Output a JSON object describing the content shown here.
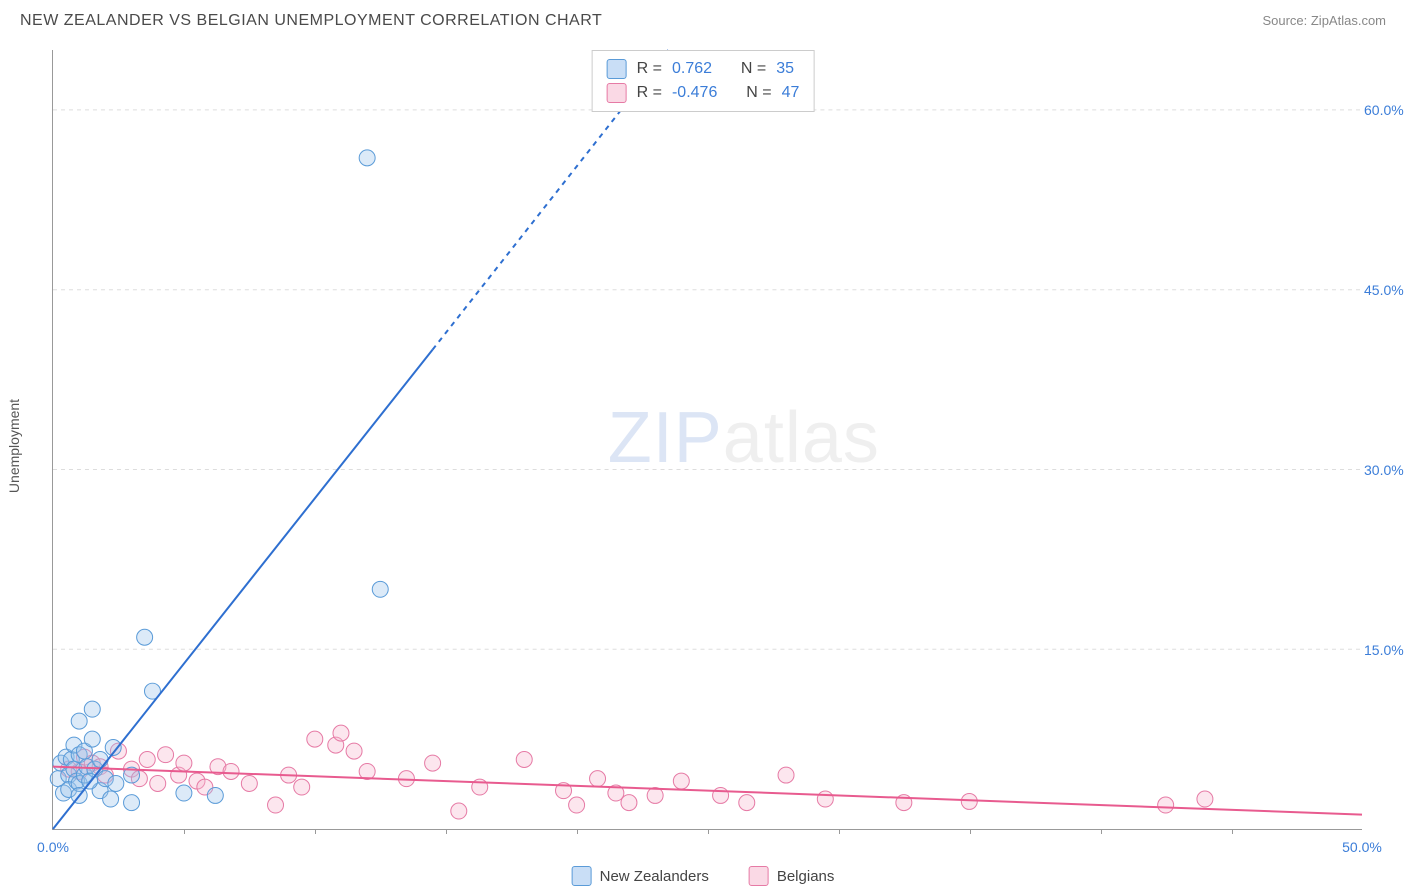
{
  "title": "NEW ZEALANDER VS BELGIAN UNEMPLOYMENT CORRELATION CHART",
  "source": "Source: ZipAtlas.com",
  "ylabel": "Unemployment",
  "watermark_zip": "ZIP",
  "watermark_atlas": "atlas",
  "chart": {
    "type": "scatter",
    "background_color": "#ffffff",
    "grid_color": "#dddddd",
    "axis_color": "#999999",
    "tick_color": "#3b7dd8",
    "xlim": [
      0,
      50
    ],
    "ylim": [
      0,
      65
    ],
    "yticks": [
      15.0,
      30.0,
      45.0,
      60.0
    ],
    "ytick_labels": [
      "15.0%",
      "30.0%",
      "45.0%",
      "60.0%"
    ],
    "xtick_marks": [
      5,
      10,
      15,
      20,
      25,
      30,
      35,
      40,
      45
    ],
    "xaxis_end_labels": {
      "min": "0.0%",
      "max": "50.0%"
    },
    "marker_radius": 8,
    "marker_opacity": 0.35,
    "trendline_width": 2
  },
  "series": {
    "new_zealanders": {
      "label": "New Zealanders",
      "color_fill": "#9cc3ec",
      "color_stroke": "#5a9bd8",
      "trend_color": "#2e6fd0",
      "R": "0.762",
      "N": "35",
      "trendline": {
        "x1": 0,
        "y1": 0,
        "x2": 14.5,
        "y2": 40
      },
      "trendline_extend": {
        "x1": 14.5,
        "y1": 40,
        "x2": 23.5,
        "y2": 65
      },
      "points": [
        [
          0.2,
          4.2
        ],
        [
          0.3,
          5.5
        ],
        [
          0.4,
          3.0
        ],
        [
          0.5,
          6.0
        ],
        [
          0.6,
          4.5
        ],
        [
          0.6,
          3.3
        ],
        [
          0.7,
          5.8
        ],
        [
          0.8,
          7.0
        ],
        [
          0.8,
          5.0
        ],
        [
          0.9,
          4.0
        ],
        [
          1.0,
          9.0
        ],
        [
          1.0,
          6.2
        ],
        [
          1.0,
          3.8
        ],
        [
          1.0,
          2.8
        ],
        [
          1.2,
          6.5
        ],
        [
          1.2,
          4.5
        ],
        [
          1.3,
          5.2
        ],
        [
          1.5,
          7.5
        ],
        [
          1.5,
          10.0
        ],
        [
          1.6,
          5.0
        ],
        [
          1.8,
          3.2
        ],
        [
          1.8,
          5.8
        ],
        [
          2.0,
          4.2
        ],
        [
          2.2,
          2.5
        ],
        [
          2.3,
          6.8
        ],
        [
          2.4,
          3.8
        ],
        [
          3.0,
          4.5
        ],
        [
          3.0,
          2.2
        ],
        [
          3.5,
          16.0
        ],
        [
          3.8,
          11.5
        ],
        [
          5.0,
          3.0
        ],
        [
          6.2,
          2.8
        ],
        [
          12.0,
          56.0
        ],
        [
          12.5,
          20.0
        ],
        [
          1.4,
          4.0
        ]
      ]
    },
    "belgians": {
      "label": "Belgians",
      "color_fill": "#f5b8ce",
      "color_stroke": "#e67aa5",
      "trend_color": "#e85b8f",
      "R": "-0.476",
      "N": "47",
      "trendline": {
        "x1": 0,
        "y1": 5.2,
        "x2": 50,
        "y2": 1.2
      },
      "points": [
        [
          0.6,
          5.0
        ],
        [
          1.0,
          4.8
        ],
        [
          1.2,
          6.0
        ],
        [
          1.5,
          5.5
        ],
        [
          1.8,
          5.2
        ],
        [
          2.0,
          4.5
        ],
        [
          2.5,
          6.5
        ],
        [
          3.0,
          5.0
        ],
        [
          3.3,
          4.2
        ],
        [
          3.6,
          5.8
        ],
        [
          4.0,
          3.8
        ],
        [
          4.3,
          6.2
        ],
        [
          4.8,
          4.5
        ],
        [
          5.0,
          5.5
        ],
        [
          5.5,
          4.0
        ],
        [
          5.8,
          3.5
        ],
        [
          6.3,
          5.2
        ],
        [
          6.8,
          4.8
        ],
        [
          7.5,
          3.8
        ],
        [
          8.5,
          2.0
        ],
        [
          9.0,
          4.5
        ],
        [
          9.5,
          3.5
        ],
        [
          10.0,
          7.5
        ],
        [
          10.8,
          7.0
        ],
        [
          11.0,
          8.0
        ],
        [
          11.5,
          6.5
        ],
        [
          12.0,
          4.8
        ],
        [
          13.5,
          4.2
        ],
        [
          14.5,
          5.5
        ],
        [
          15.5,
          1.5
        ],
        [
          16.3,
          3.5
        ],
        [
          18.0,
          5.8
        ],
        [
          19.5,
          3.2
        ],
        [
          20.0,
          2.0
        ],
        [
          20.8,
          4.2
        ],
        [
          21.5,
          3.0
        ],
        [
          22.0,
          2.2
        ],
        [
          23.0,
          2.8
        ],
        [
          24.0,
          4.0
        ],
        [
          26.5,
          2.2
        ],
        [
          28.0,
          4.5
        ],
        [
          29.5,
          2.5
        ],
        [
          32.5,
          2.2
        ],
        [
          35.0,
          2.3
        ],
        [
          42.5,
          2.0
        ],
        [
          44.0,
          2.5
        ],
        [
          25.5,
          2.8
        ]
      ]
    }
  },
  "stats_box": {
    "r_label": "R  =",
    "n_label": "N  ="
  }
}
